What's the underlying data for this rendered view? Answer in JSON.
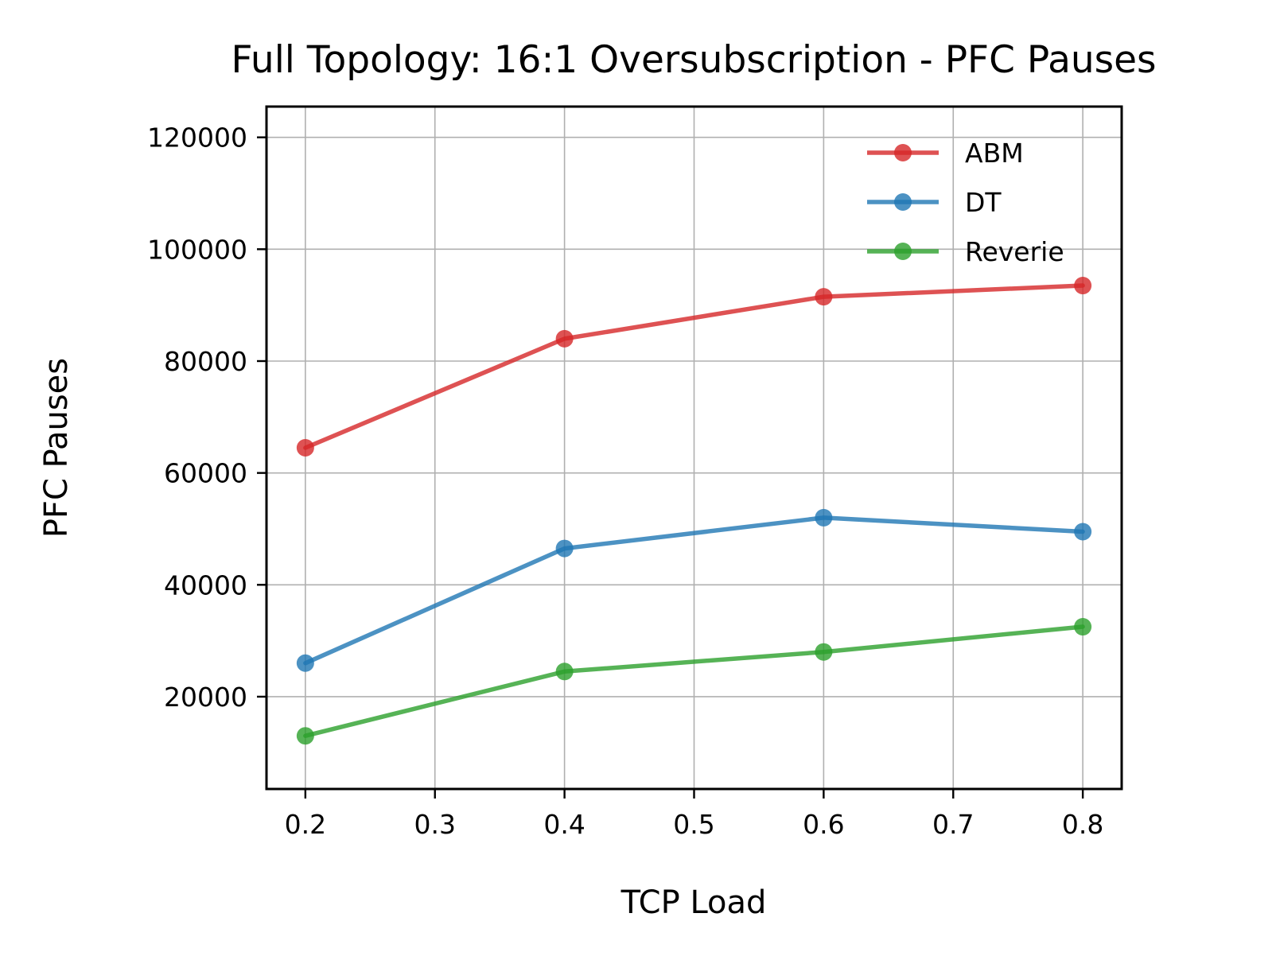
{
  "chart_data": {
    "type": "line",
    "title": "Full Topology: 16:1 Oversubscription - PFC Pauses",
    "xlabel": "TCP Load",
    "ylabel": "PFC Pauses",
    "x": [
      0.2,
      0.4,
      0.6,
      0.8
    ],
    "xlim": [
      0.17,
      0.83
    ],
    "ylim": [
      3500,
      125500
    ],
    "x_ticks": [
      0.2,
      0.3,
      0.4,
      0.5,
      0.6,
      0.7,
      0.8
    ],
    "x_tick_labels": [
      "0.2",
      "0.3",
      "0.4",
      "0.5",
      "0.6",
      "0.7",
      "0.8"
    ],
    "y_ticks": [
      20000,
      40000,
      60000,
      80000,
      100000,
      120000
    ],
    "y_tick_labels": [
      "20000",
      "40000",
      "60000",
      "80000",
      "100000",
      "120000"
    ],
    "grid": true,
    "legend_position": "top-right",
    "series": [
      {
        "name": "ABM",
        "color": "#d62728",
        "values": [
          64500,
          84000,
          91500,
          93500
        ]
      },
      {
        "name": "DT",
        "color": "#1f77b4",
        "values": [
          26000,
          46500,
          52000,
          49500
        ]
      },
      {
        "name": "Reverie",
        "color": "#2ca02c",
        "values": [
          13000,
          24500,
          28000,
          32500
        ]
      }
    ]
  }
}
